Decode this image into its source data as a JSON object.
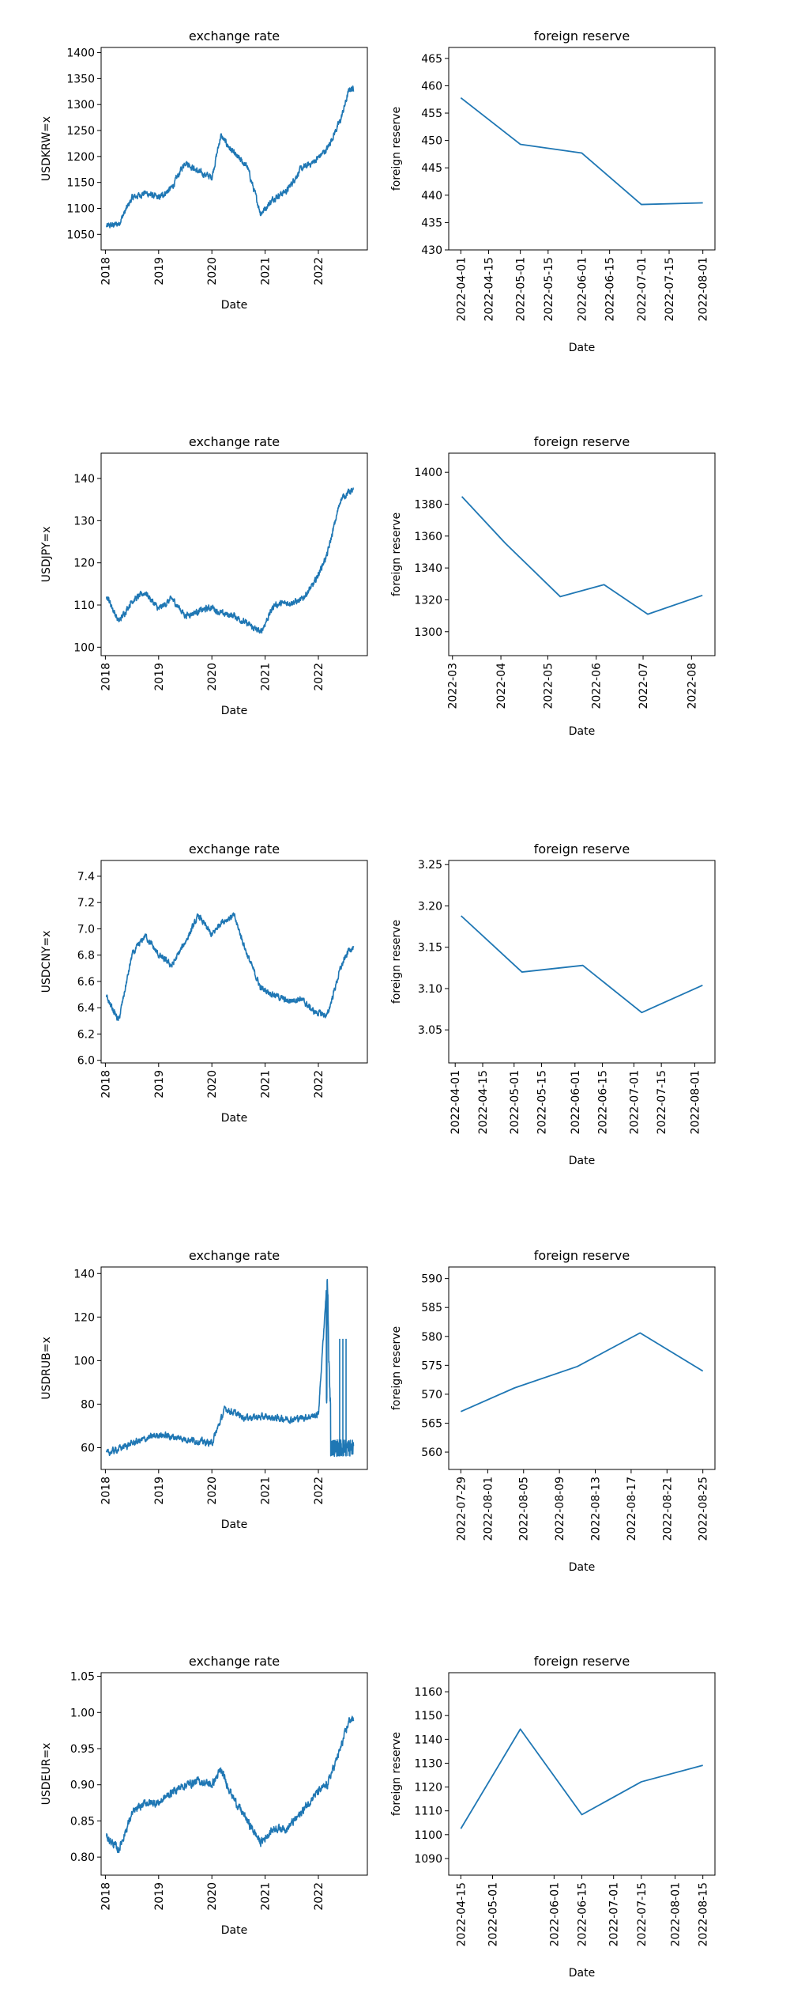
{
  "figure": {
    "line_color": "#1f77b4",
    "charts": [
      {
        "title": "exchange rate",
        "xlabel": "Date",
        "ylabel": "USDKRW=x",
        "type": "line",
        "yticks": [
          "1050",
          "1100",
          "1150",
          "1200",
          "1250",
          "1300",
          "1350",
          "1400"
        ],
        "ylim": [
          1020,
          1410
        ],
        "xticks": [
          "2018",
          "2019",
          "2020",
          "2021",
          "2022"
        ],
        "xlim": [
          2017.92,
          2022.92
        ],
        "series_kind": "krw"
      },
      {
        "title": "foreign reserve",
        "xlabel": "Date",
        "ylabel": "foreign reserve",
        "type": "line",
        "yticks": [
          "430",
          "435",
          "440",
          "445",
          "450",
          "455",
          "460",
          "465"
        ],
        "ylim": [
          430,
          467
        ],
        "xticks": [
          "2022-04-01",
          "2022-04-15",
          "2022-05-01",
          "2022-05-15",
          "2022-06-01",
          "2022-06-15",
          "2022-07-01",
          "2022-07-15",
          "2022-08-01"
        ],
        "x": [
          "2022-04-01",
          "2022-05-01",
          "2022-06-01",
          "2022-07-01",
          "2022-08-01"
        ],
        "values": [
          457.8,
          449.3,
          447.7,
          438.3,
          438.6
        ]
      },
      {
        "title": "exchange rate",
        "xlabel": "Date",
        "ylabel": "USDJPY=x",
        "type": "line",
        "yticks": [
          "100",
          "110",
          "120",
          "130",
          "140"
        ],
        "ylim": [
          98,
          146
        ],
        "xticks": [
          "2018",
          "2019",
          "2020",
          "2021",
          "2022"
        ],
        "xlim": [
          2017.92,
          2022.92
        ],
        "series_kind": "jpy"
      },
      {
        "title": "foreign reserve",
        "xlabel": "Date",
        "ylabel": "foreign reserve",
        "type": "line",
        "yticks": [
          "1300",
          "1320",
          "1340",
          "1360",
          "1380",
          "1400"
        ],
        "ylim": [
          1285,
          1412
        ],
        "xticks": [
          "2022-03",
          "2022-04",
          "2022-05",
          "2022-06",
          "2022-07",
          "2022-08"
        ],
        "x": [
          "2022-03-07",
          "2022-04-04",
          "2022-05-09",
          "2022-06-06",
          "2022-07-04",
          "2022-08-08"
        ],
        "values": [
          1384.8,
          1355.3,
          1322.0,
          1329.5,
          1311.0,
          1322.8
        ]
      },
      {
        "title": "exchange rate",
        "xlabel": "Date",
        "ylabel": "USDCNY=x",
        "type": "line",
        "yticks": [
          "6.0",
          "6.2",
          "6.4",
          "6.6",
          "6.8",
          "7.0",
          "7.2",
          "7.4"
        ],
        "ylim": [
          5.98,
          7.52
        ],
        "xticks": [
          "2018",
          "2019",
          "2020",
          "2021",
          "2022"
        ],
        "xlim": [
          2017.92,
          2022.92
        ],
        "series_kind": "cny"
      },
      {
        "title": "foreign reserve",
        "xlabel": "Date",
        "ylabel": "foreign reserve",
        "type": "line",
        "yticks": [
          "3.05",
          "3.10",
          "3.15",
          "3.20",
          "3.25"
        ],
        "ylim": [
          3.01,
          3.255
        ],
        "xticks": [
          "2022-04-01",
          "2022-04-15",
          "2022-05-01",
          "2022-05-15",
          "2022-06-01",
          "2022-06-15",
          "2022-07-01",
          "2022-07-15",
          "2022-08-01"
        ],
        "x": [
          "2022-04-04",
          "2022-05-05",
          "2022-06-05",
          "2022-07-05",
          "2022-08-05"
        ],
        "values": [
          3.188,
          3.12,
          3.128,
          3.071,
          3.104
        ]
      },
      {
        "title": "exchange rate",
        "xlabel": "Date",
        "ylabel": "USDRUB=x",
        "type": "line",
        "yticks": [
          "60",
          "80",
          "100",
          "120",
          "140"
        ],
        "ylim": [
          50,
          143
        ],
        "xticks": [
          "2018",
          "2019",
          "2020",
          "2021",
          "2022"
        ],
        "xlim": [
          2017.92,
          2022.92
        ],
        "series_kind": "rub"
      },
      {
        "title": "foreign reserve",
        "xlabel": "Date",
        "ylabel": "foreign reserve",
        "type": "line",
        "yticks": [
          "560",
          "565",
          "570",
          "575",
          "580",
          "585",
          "590"
        ],
        "ylim": [
          557,
          592
        ],
        "xticks": [
          "2022-07-29",
          "2022-08-01",
          "2022-08-05",
          "2022-08-09",
          "2022-08-13",
          "2022-08-17",
          "2022-08-21",
          "2022-08-25"
        ],
        "x": [
          "2022-07-29",
          "2022-08-04",
          "2022-08-11",
          "2022-08-18",
          "2022-08-25"
        ],
        "values": [
          567.0,
          571.1,
          574.8,
          580.6,
          574.0
        ]
      },
      {
        "title": "exchange rate",
        "xlabel": "Date",
        "ylabel": "USDEUR=x",
        "type": "line",
        "yticks": [
          "0.80",
          "0.85",
          "0.90",
          "0.95",
          "1.00",
          "1.05"
        ],
        "ylim": [
          0.775,
          1.055
        ],
        "xticks": [
          "2018",
          "2019",
          "2020",
          "2021",
          "2022"
        ],
        "xlim": [
          2017.92,
          2022.92
        ],
        "series_kind": "eur"
      },
      {
        "title": "foreign reserve",
        "xlabel": "Date",
        "ylabel": "foreign reserve",
        "type": "line",
        "yticks": [
          "1090",
          "1100",
          "1110",
          "1120",
          "1130",
          "1140",
          "1150",
          "1160"
        ],
        "ylim": [
          1083,
          1168
        ],
        "xticks": [
          "2022-04-15",
          "2022-05-01",
          "2022-06-01",
          "2022-06-15",
          "2022-07-01",
          "2022-07-15",
          "2022-08-01",
          "2022-08-15"
        ],
        "x": [
          "2022-04-15",
          "2022-05-15",
          "2022-06-15",
          "2022-07-15",
          "2022-08-15"
        ],
        "values": [
          1102.5,
          1144.3,
          1108.4,
          1122.2,
          1129.1
        ]
      }
    ]
  },
  "chart_data": [
    {
      "type": "line",
      "title": "exchange rate",
      "xlabel": "Date",
      "ylabel": "USDKRW=x",
      "x": [
        "2018-01",
        "2018-04",
        "2018-07",
        "2018-10",
        "2019-01",
        "2019-04",
        "2019-07",
        "2019-10",
        "2020-01",
        "2020-03",
        "2020-06",
        "2020-09",
        "2020-12",
        "2021-03",
        "2021-06",
        "2021-09",
        "2021-12",
        "2022-03",
        "2022-06",
        "2022-08"
      ],
      "values": [
        1065,
        1070,
        1120,
        1130,
        1120,
        1140,
        1190,
        1170,
        1160,
        1240,
        1205,
        1180,
        1090,
        1120,
        1135,
        1175,
        1190,
        1215,
        1270,
        1330
      ]
    },
    {
      "type": "line",
      "title": "foreign reserve",
      "xlabel": "Date",
      "ylabel": "foreign reserve",
      "x": [
        "2022-04-01",
        "2022-05-01",
        "2022-06-01",
        "2022-07-01",
        "2022-08-01"
      ],
      "values": [
        457.8,
        449.3,
        447.7,
        438.3,
        438.6
      ]
    },
    {
      "type": "line",
      "title": "exchange rate",
      "xlabel": "Date",
      "ylabel": "USDJPY=x",
      "x": [
        "2018-01",
        "2018-04",
        "2018-07",
        "2018-10",
        "2019-01",
        "2019-04",
        "2019-07",
        "2019-10",
        "2020-01",
        "2020-03",
        "2020-06",
        "2020-09",
        "2020-12",
        "2021-03",
        "2021-06",
        "2021-09",
        "2021-12",
        "2022-03",
        "2022-06",
        "2022-08"
      ],
      "values": [
        113,
        106,
        111,
        113,
        109,
        111.5,
        107.5,
        108.5,
        109.5,
        108,
        107.5,
        105.5,
        103.5,
        110,
        110.5,
        111,
        115,
        122,
        135,
        137
      ]
    },
    {
      "type": "line",
      "title": "foreign reserve",
      "xlabel": "Date",
      "ylabel": "foreign reserve",
      "x": [
        "2022-03-07",
        "2022-04-04",
        "2022-05-09",
        "2022-06-06",
        "2022-07-04",
        "2022-08-08"
      ],
      "values": [
        1384.8,
        1355.3,
        1322.0,
        1329.5,
        1311.0,
        1322.8
      ]
    },
    {
      "type": "line",
      "title": "exchange rate",
      "xlabel": "Date",
      "ylabel": "USDCNY=x",
      "x": [
        "2018-01",
        "2018-04",
        "2018-07",
        "2018-10",
        "2019-01",
        "2019-04",
        "2019-07",
        "2019-10",
        "2020-01",
        "2020-03",
        "2020-06",
        "2020-09",
        "2020-12",
        "2021-03",
        "2021-06",
        "2021-09",
        "2021-12",
        "2022-03",
        "2022-06",
        "2022-08"
      ],
      "values": [
        6.5,
        6.3,
        6.8,
        6.95,
        6.8,
        6.72,
        6.9,
        7.1,
        6.95,
        7.05,
        7.1,
        6.8,
        6.55,
        6.5,
        6.45,
        6.47,
        6.37,
        6.34,
        6.7,
        6.85
      ]
    },
    {
      "type": "line",
      "title": "foreign reserve",
      "xlabel": "Date",
      "ylabel": "foreign reserve",
      "x": [
        "2022-04-04",
        "2022-05-05",
        "2022-06-05",
        "2022-07-05",
        "2022-08-05"
      ],
      "values": [
        3.188,
        3.12,
        3.128,
        3.071,
        3.104
      ]
    },
    {
      "type": "line",
      "title": "exchange rate",
      "xlabel": "Date",
      "ylabel": "USDRUB=x",
      "x": [
        "2018-01",
        "2018-07",
        "2019-01",
        "2019-07",
        "2020-01",
        "2020-04",
        "2020-08",
        "2021-01",
        "2021-07",
        "2022-01",
        "2022-03",
        "2022-05",
        "2022-07",
        "2022-08"
      ],
      "values": [
        57,
        62,
        66,
        64,
        62,
        78,
        74,
        74,
        73,
        75,
        139,
        70,
        60,
        61
      ]
    },
    {
      "type": "line",
      "title": "foreign reserve",
      "xlabel": "Date",
      "ylabel": "foreign reserve",
      "x": [
        "2022-07-29",
        "2022-08-04",
        "2022-08-11",
        "2022-08-18",
        "2022-08-25"
      ],
      "values": [
        567.0,
        571.1,
        574.8,
        580.6,
        574.0
      ]
    },
    {
      "type": "line",
      "title": "exchange rate",
      "xlabel": "Date",
      "ylabel": "USDEUR=x",
      "x": [
        "2018-01",
        "2018-04",
        "2018-07",
        "2018-10",
        "2019-01",
        "2019-04",
        "2019-07",
        "2019-10",
        "2020-01",
        "2020-03",
        "2020-06",
        "2020-09",
        "2020-12",
        "2021-03",
        "2021-06",
        "2021-09",
        "2021-12",
        "2022-03",
        "2022-06",
        "2022-08"
      ],
      "values": [
        0.83,
        0.81,
        0.86,
        0.875,
        0.875,
        0.89,
        0.9,
        0.905,
        0.9,
        0.92,
        0.88,
        0.85,
        0.82,
        0.84,
        0.84,
        0.86,
        0.885,
        0.9,
        0.95,
        0.99
      ]
    },
    {
      "type": "line",
      "title": "foreign reserve",
      "xlabel": "Date",
      "ylabel": "foreign reserve",
      "x": [
        "2022-04-15",
        "2022-05-15",
        "2022-06-15",
        "2022-07-15",
        "2022-08-15"
      ],
      "values": [
        1102.5,
        1144.3,
        1108.4,
        1122.2,
        1129.1
      ]
    }
  ]
}
